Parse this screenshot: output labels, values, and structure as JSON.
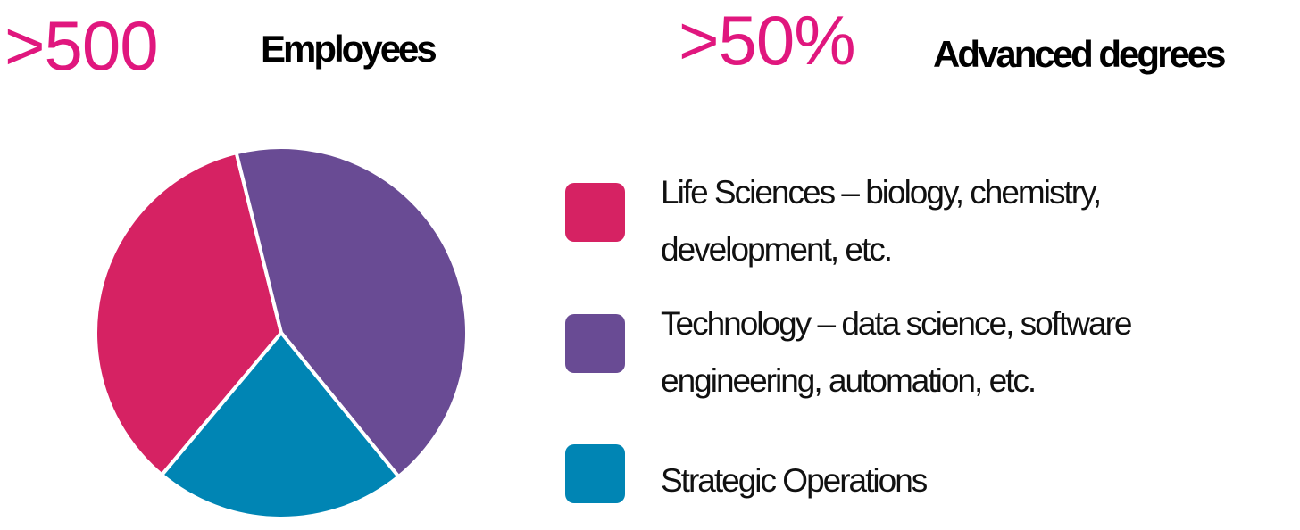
{
  "stats": [
    {
      "value": ">500",
      "label": "Employees"
    },
    {
      "value": ">50%",
      "label": "Advanced degrees"
    }
  ],
  "chart_data": {
    "type": "pie",
    "categories": [
      "Life Sciences – biology, chemistry, development, etc.",
      "Technology – data science, software engineering, automation, etc.",
      "Strategic Operations"
    ],
    "values": [
      35,
      43,
      22
    ],
    "colors": [
      "#d62263",
      "#694b94",
      "#0085b4"
    ]
  }
}
